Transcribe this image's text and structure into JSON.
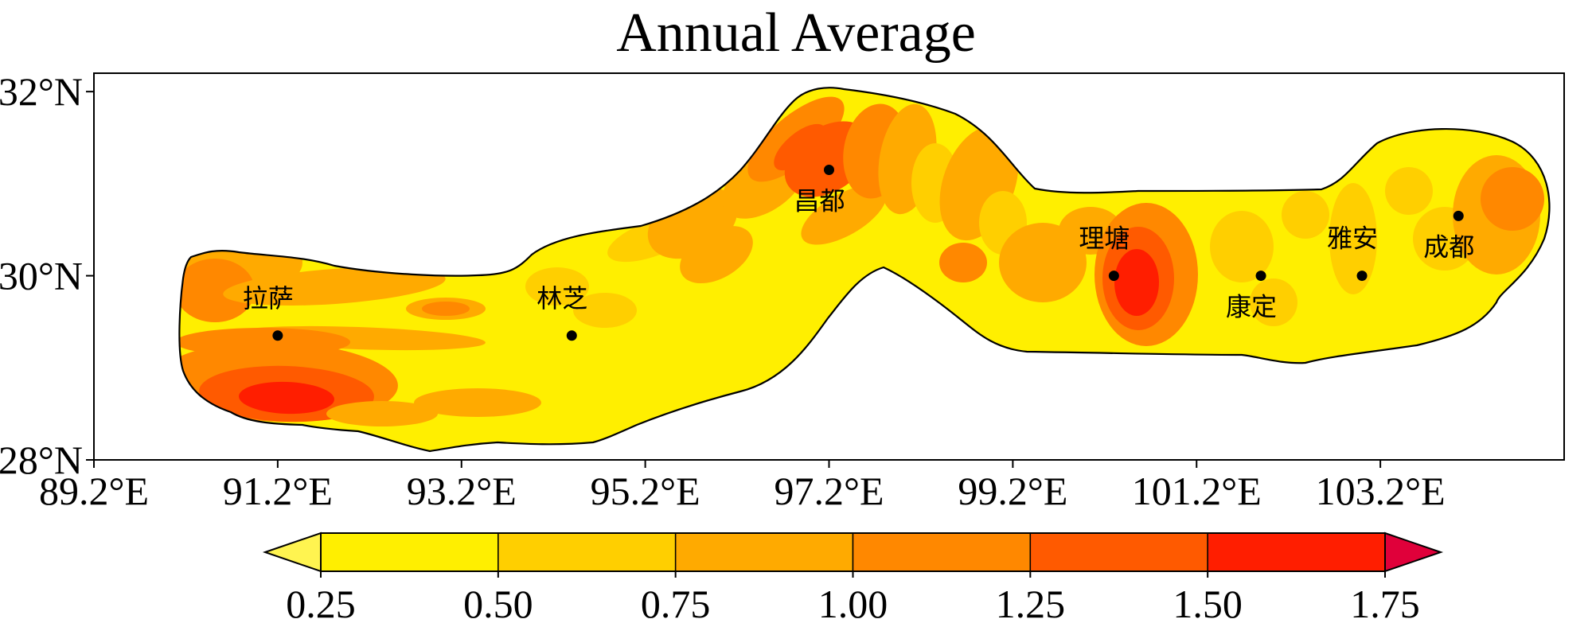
{
  "title": "Annual Average",
  "map": {
    "lon_range": [
      89.2,
      105.2
    ],
    "lat_range": [
      28,
      32.2
    ],
    "lon_ticks": [
      {
        "value": 89.2,
        "label": "89.2°E"
      },
      {
        "value": 91.2,
        "label": "91.2°E"
      },
      {
        "value": 93.2,
        "label": "93.2°E"
      },
      {
        "value": 95.2,
        "label": "95.2°E"
      },
      {
        "value": 97.2,
        "label": "97.2°E"
      },
      {
        "value": 99.2,
        "label": "99.2°E"
      },
      {
        "value": 101.2,
        "label": "101.2°E"
      },
      {
        "value": 103.2,
        "label": "103.2°E"
      }
    ],
    "lat_ticks": [
      {
        "value": 28,
        "label": "28°N"
      },
      {
        "value": 30,
        "label": "30°N"
      },
      {
        "value": 32,
        "label": "32°N"
      }
    ],
    "cities": [
      {
        "name": "拉萨",
        "lon": 91.2,
        "lat": 29.35,
        "label_pos": "above"
      },
      {
        "name": "林芝",
        "lon": 94.4,
        "lat": 29.35,
        "label_pos": "above"
      },
      {
        "name": "昌都",
        "lon": 97.2,
        "lat": 31.15,
        "label_pos": "below"
      },
      {
        "name": "理塘",
        "lon": 100.3,
        "lat": 30.0,
        "label_pos": "above"
      },
      {
        "name": "康定",
        "lon": 101.9,
        "lat": 30.0,
        "label_pos": "below"
      },
      {
        "name": "雅安",
        "lon": 103.0,
        "lat": 30.0,
        "label_pos": "above"
      },
      {
        "name": "成都",
        "lon": 104.05,
        "lat": 30.65,
        "label_pos": "below"
      }
    ],
    "colors": {
      "outline": "#000000",
      "level_colors": [
        "#ffef00",
        "#ffcf00",
        "#ffaa00",
        "#ff8800",
        "#ff5a00",
        "#ff1e00",
        "#e3002f"
      ]
    }
  },
  "colorbar": {
    "levels": [
      0.25,
      0.5,
      0.75,
      1.0,
      1.25,
      1.5,
      1.75
    ],
    "tick_labels": [
      "0.25",
      "0.50",
      "0.75",
      "1.00",
      "1.25",
      "1.50",
      "1.75"
    ],
    "under_color": "#fff450",
    "over_color": "#e0003a"
  }
}
